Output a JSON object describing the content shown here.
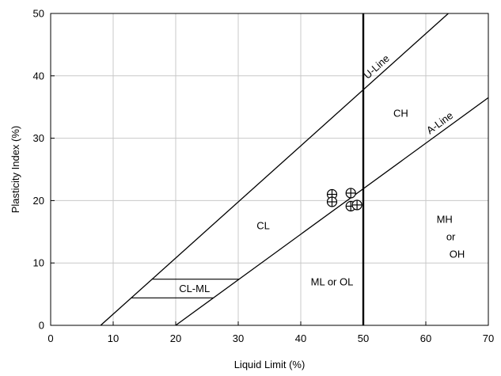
{
  "chart_data": {
    "type": "scatter",
    "title": "",
    "xlabel": "Liquid Limit (%)",
    "ylabel": "Plasticity Index (%)",
    "xlim": [
      0,
      70
    ],
    "ylim": [
      0,
      50
    ],
    "x_ticks": [
      0,
      10,
      20,
      30,
      40,
      50,
      60,
      70
    ],
    "y_ticks": [
      0,
      10,
      20,
      30,
      40,
      50
    ],
    "grid": true,
    "points": [
      {
        "x": 45,
        "y": 21
      },
      {
        "x": 45,
        "y": 19.8
      },
      {
        "x": 48,
        "y": 21.2
      },
      {
        "x": 48,
        "y": 19.1
      },
      {
        "x": 49,
        "y": 19.3
      }
    ],
    "lines": [
      {
        "label": "U-Line",
        "equation": "PI = 0.9 (LL - 8)",
        "from": [
          8,
          0
        ],
        "to": [
          63.6,
          50
        ]
      },
      {
        "label": "A-Line",
        "equation": "PI = 0.73 (LL - 20)",
        "from": [
          20,
          0
        ],
        "to": [
          70,
          36.5
        ]
      }
    ],
    "divider_x": 50,
    "clml_band": {
      "lower_pi": 4.4,
      "upper_pi": 7.4
    },
    "regions": [
      {
        "label": "CL",
        "x": 34,
        "y": 16
      },
      {
        "label": "CH",
        "x": 56,
        "y": 34
      },
      {
        "label": "ML or OL",
        "x": 45,
        "y": 7
      },
      {
        "label": "CL-ML",
        "x": 23,
        "y": 5.9
      },
      {
        "label": "MH",
        "x": 63,
        "y": 17
      },
      {
        "label": "or",
        "x": 64,
        "y": 14.2
      },
      {
        "label": "OH",
        "x": 65,
        "y": 11.4
      }
    ]
  }
}
